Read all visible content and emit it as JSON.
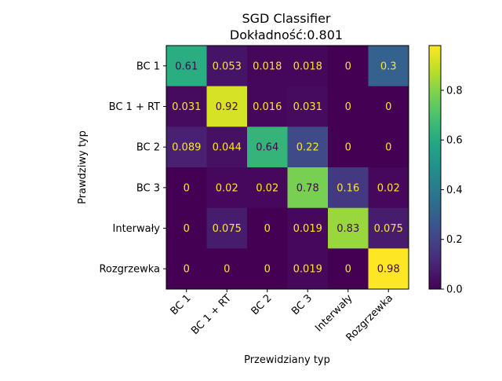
{
  "chart_data": {
    "type": "heatmap",
    "title": "SGD Classifier",
    "subtitle": "Dokładność:0.801",
    "xlabel": "Przewidziany typ",
    "ylabel": "Prawdziwy typ",
    "row_labels": [
      "BC 1",
      "BC 1 + RT",
      "BC 2",
      "BC 3",
      "Interwały",
      "Rozgrzewka"
    ],
    "col_labels": [
      "BC 1",
      "BC 1 + RT",
      "BC 2",
      "BC 3",
      "Interwały",
      "Rozgrzewka"
    ],
    "values": [
      [
        0.61,
        0.053,
        0.018,
        0.018,
        0,
        0.3
      ],
      [
        0.031,
        0.92,
        0.016,
        0.031,
        0,
        0
      ],
      [
        0.089,
        0.044,
        0.64,
        0.22,
        0,
        0
      ],
      [
        0,
        0.02,
        0.02,
        0.78,
        0.16,
        0.02
      ],
      [
        0,
        0.075,
        0,
        0.019,
        0.83,
        0.075
      ],
      [
        0,
        0,
        0,
        0.019,
        0,
        0.98
      ]
    ],
    "cell_labels": [
      [
        "0.61",
        "0.053",
        "0.018",
        "0.018",
        "0",
        "0.3"
      ],
      [
        "0.031",
        "0.92",
        "0.016",
        "0.031",
        "0",
        "0"
      ],
      [
        "0.089",
        "0.044",
        "0.64",
        "0.22",
        "0",
        "0"
      ],
      [
        "0",
        "0.02",
        "0.02",
        "0.78",
        "0.16",
        "0.02"
      ],
      [
        "0",
        "0.075",
        "0",
        "0.019",
        "0.83",
        "0.075"
      ],
      [
        "0",
        "0",
        "0",
        "0.019",
        "0",
        "0.98"
      ]
    ],
    "colormap": "viridis",
    "vmin": 0,
    "vmax": 0.98,
    "colorbar": {
      "ticks": [
        0.0,
        0.2,
        0.4,
        0.6,
        0.8
      ],
      "tick_labels": [
        "0.0",
        "0.2",
        "0.4",
        "0.6",
        "0.8"
      ]
    },
    "text_color_low": "#fde725",
    "text_color_high": "#440154"
  }
}
